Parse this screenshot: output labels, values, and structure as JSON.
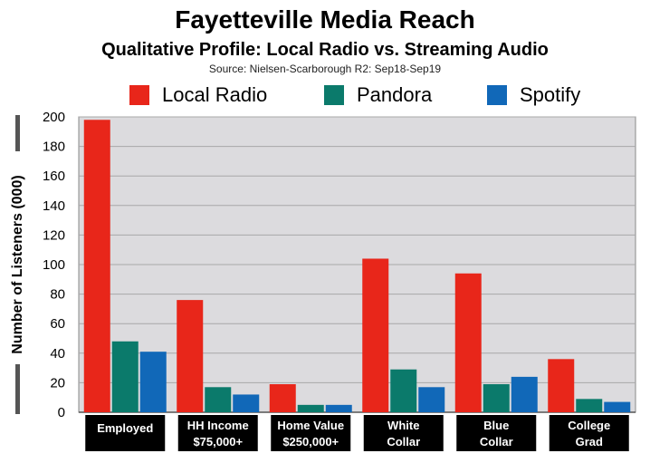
{
  "chart_data": {
    "type": "bar",
    "title": "Fayetteville Media Reach",
    "subtitle": "Qualitative Profile: Local Radio vs. Streaming Audio",
    "source": "Source: Nielsen-Scarborough R2: Sep18-Sep19",
    "ylabel": "Number of Listeners (000)",
    "xlabel": "",
    "ylim": [
      0,
      200
    ],
    "yticks": [
      0,
      20,
      40,
      60,
      80,
      100,
      120,
      140,
      160,
      180,
      200
    ],
    "grid": true,
    "legend_position": "top",
    "categories": [
      [
        "Employed"
      ],
      [
        "HH Income",
        "$75,000+"
      ],
      [
        "Home Value",
        "$250,000+"
      ],
      [
        "White",
        "Collar"
      ],
      [
        "Blue",
        "Collar"
      ],
      [
        "College",
        "Grad"
      ]
    ],
    "series": [
      {
        "name": "Local Radio",
        "color": "#e8261a",
        "values": [
          198,
          76,
          19,
          104,
          94,
          36
        ]
      },
      {
        "name": "Pandora",
        "color": "#0b7a6b",
        "values": [
          48,
          17,
          5,
          29,
          19,
          9
        ]
      },
      {
        "name": "Spotify",
        "color": "#1168b8",
        "values": [
          41,
          12,
          5,
          17,
          24,
          7
        ]
      }
    ]
  }
}
